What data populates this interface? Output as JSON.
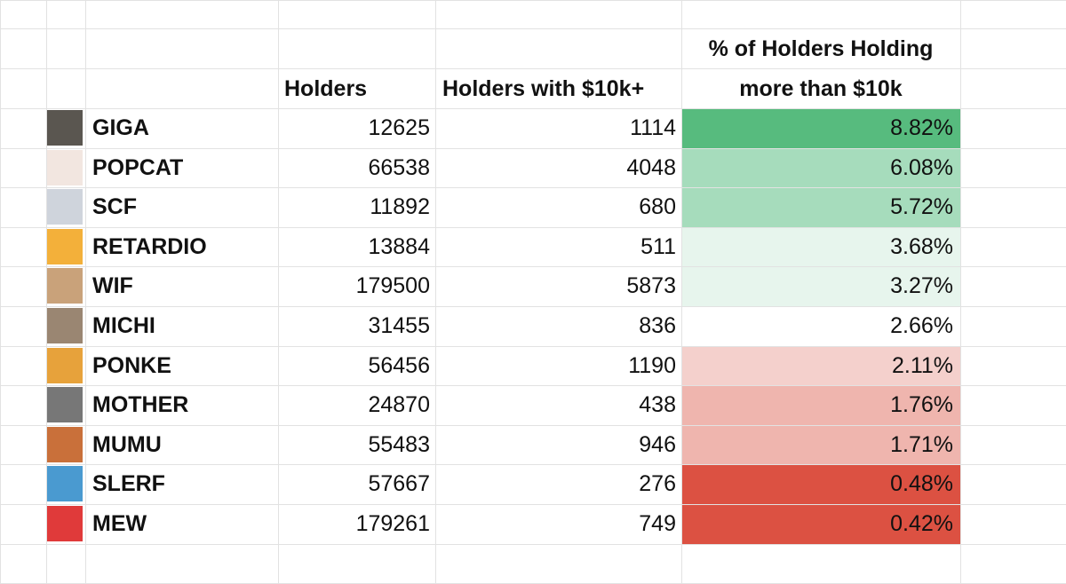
{
  "table": {
    "header": {
      "holders": "Holders",
      "holders_10k": "Holders with $10k+",
      "pct": [
        "% of Holders Holding",
        "more than $10k"
      ]
    },
    "rows": [
      {
        "name": "GIGA",
        "holders": 12625,
        "holders_10k": 1114,
        "pct": "8.82%",
        "color": "#57bb7e"
      },
      {
        "name": "POPCAT",
        "holders": 66538,
        "holders_10k": 4048,
        "pct": "6.08%",
        "color": "#a6dcbc"
      },
      {
        "name": "SCF",
        "holders": 11892,
        "holders_10k": 680,
        "pct": "5.72%",
        "color": "#a6dcbc"
      },
      {
        "name": "RETARDIO",
        "holders": 13884,
        "holders_10k": 511,
        "pct": "3.68%",
        "color": "#e7f5ed"
      },
      {
        "name": "WIF",
        "holders": 179500,
        "holders_10k": 5873,
        "pct": "3.27%",
        "color": "#e7f5ed"
      },
      {
        "name": "MICHI",
        "holders": 31455,
        "holders_10k": 836,
        "pct": "2.66%",
        "color": "#ffffff"
      },
      {
        "name": "PONKE",
        "holders": 56456,
        "holders_10k": 1190,
        "pct": "2.11%",
        "color": "#f4d0cc"
      },
      {
        "name": "MOTHER",
        "holders": 24870,
        "holders_10k": 438,
        "pct": "1.76%",
        "color": "#efb5ae"
      },
      {
        "name": "MUMU",
        "holders": 55483,
        "holders_10k": 946,
        "pct": "1.71%",
        "color": "#efb5ae"
      },
      {
        "name": "SLERF",
        "holders": 57667,
        "holders_10k": 276,
        "pct": "0.48%",
        "color": "#dc5142"
      },
      {
        "name": "MEW",
        "holders": 179261,
        "holders_10k": 749,
        "pct": "0.42%",
        "color": "#dc5142"
      }
    ]
  }
}
